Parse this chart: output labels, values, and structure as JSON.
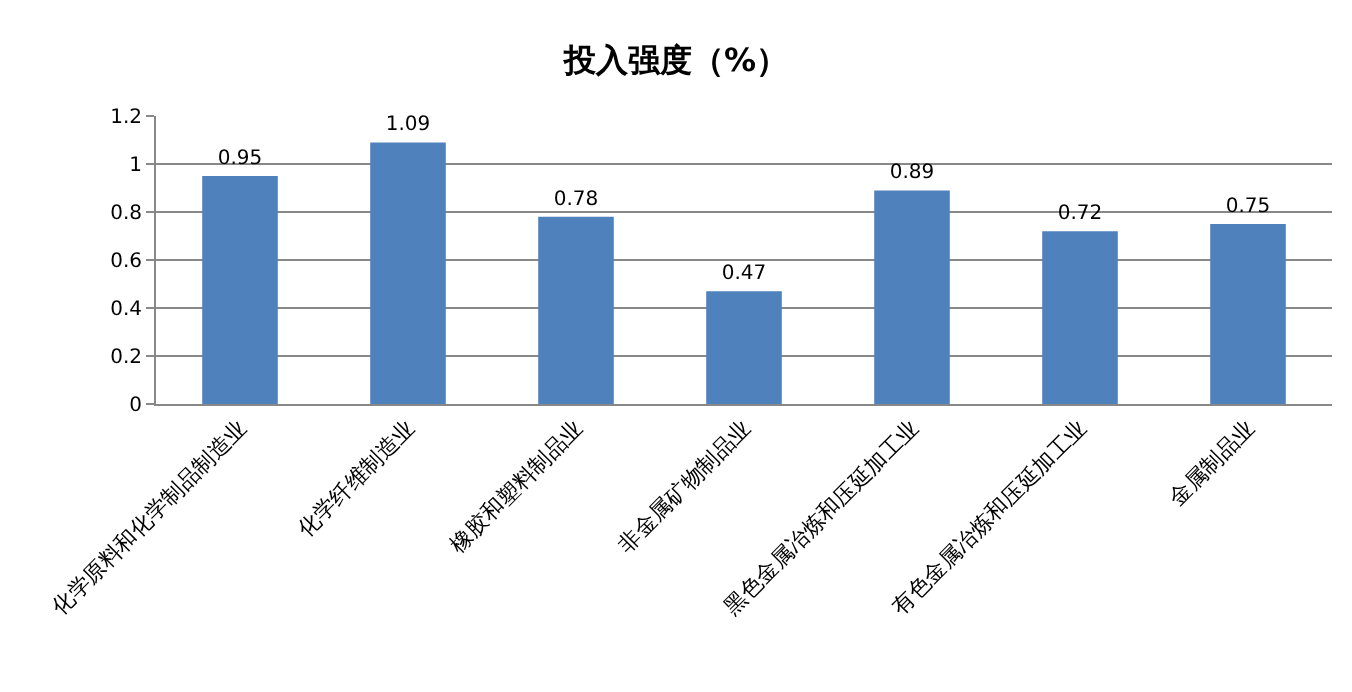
{
  "chart_data": {
    "type": "bar",
    "title": "投入强度（%）",
    "categories": [
      "化学原料和化学制品制造业",
      "化学纤维制造业",
      "橡胶和塑料制品业",
      "非金属矿物制品业",
      "黑色金属冶炼和压延加工业",
      "有色金属冶炼和压延加工业",
      "金属制品业"
    ],
    "values": [
      0.95,
      1.09,
      0.78,
      0.47,
      0.89,
      0.72,
      0.75
    ],
    "color": "#4f81bd",
    "ylim": [
      0,
      1.2
    ],
    "yticks": [
      0,
      0.2,
      0.4,
      0.6,
      0.8,
      1,
      1.2
    ],
    "grid": "y",
    "data_labels": true
  }
}
